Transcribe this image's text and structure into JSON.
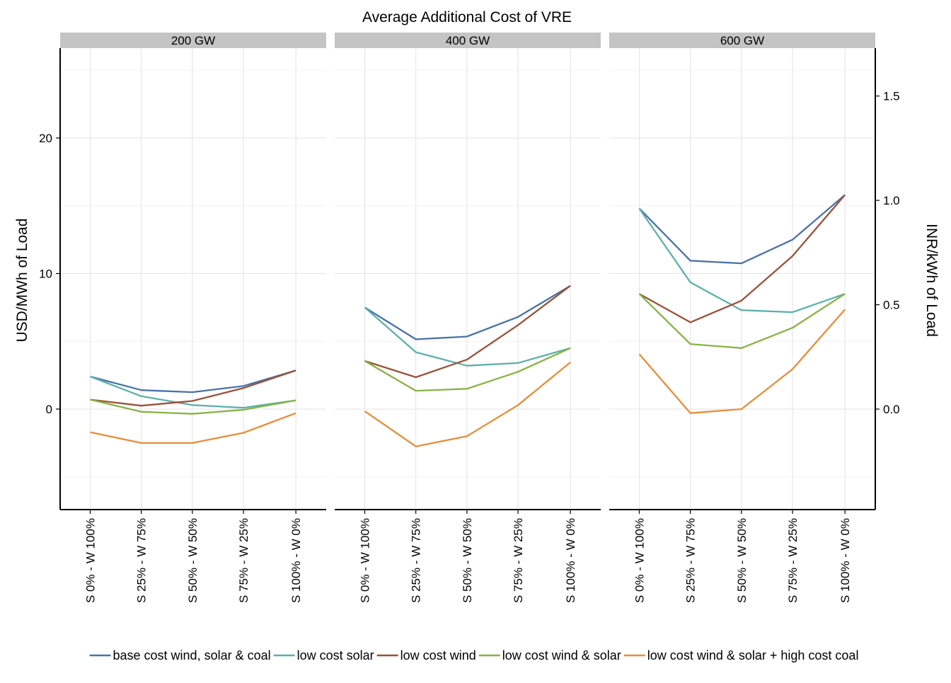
{
  "chart_data": {
    "type": "line",
    "title": "Average Additional Cost of VRE",
    "ylabel": "USD/MWh of Load",
    "y2label": "INR/kWh of Load",
    "ylim": [
      -7.5,
      26.5
    ],
    "y_ticks": [
      0,
      10,
      20
    ],
    "y2_ticks": [
      "0.0",
      "0.5",
      "1.0",
      "1.5"
    ],
    "y2_tick_values_usd": [
      0,
      7.7,
      15.4,
      23.1
    ],
    "categories": [
      "S 0% - W 100%",
      "S 25% - W 75%",
      "S 50% - W 50%",
      "S 75% - W 25%",
      "S 100% - W 0%"
    ],
    "legend_position": "bottom",
    "grid": true,
    "panels": [
      {
        "label": "200 GW",
        "series": [
          {
            "name": "base cost wind, solar & coal",
            "color": "#4a72a8",
            "values": [
              2.4,
              1.4,
              1.25,
              1.7,
              2.85
            ]
          },
          {
            "name": "low cost solar",
            "color": "#5cb0ad",
            "values": [
              2.4,
              0.95,
              0.3,
              0.1,
              0.65
            ]
          },
          {
            "name": "low cost wind",
            "color": "#9b5138",
            "values": [
              0.7,
              0.25,
              0.6,
              1.55,
              2.85
            ]
          },
          {
            "name": "low cost wind & solar",
            "color": "#86b443",
            "values": [
              0.7,
              -0.2,
              -0.35,
              -0.05,
              0.65
            ]
          },
          {
            "name": "low cost wind & solar + high cost coal",
            "color": "#ea8c36",
            "values": [
              -1.7,
              -2.5,
              -2.5,
              -1.75,
              -0.3
            ]
          }
        ]
      },
      {
        "label": "400 GW",
        "series": [
          {
            "name": "base cost wind, solar & coal",
            "color": "#4a72a8",
            "values": [
              7.5,
              5.15,
              5.35,
              6.8,
              9.1
            ]
          },
          {
            "name": "low cost solar",
            "color": "#5cb0ad",
            "values": [
              7.5,
              4.2,
              3.2,
              3.4,
              4.5
            ]
          },
          {
            "name": "low cost wind",
            "color": "#9b5138",
            "values": [
              3.55,
              2.35,
              3.65,
              6.2,
              9.1
            ]
          },
          {
            "name": "low cost wind & solar",
            "color": "#86b443",
            "values": [
              3.55,
              1.35,
              1.5,
              2.75,
              4.5
            ]
          },
          {
            "name": "low cost wind & solar + high cost coal",
            "color": "#ea8c36",
            "values": [
              -0.15,
              -2.75,
              -2.0,
              0.3,
              3.45
            ]
          }
        ]
      },
      {
        "label": "600 GW",
        "series": [
          {
            "name": "base cost wind, solar & coal",
            "color": "#4a72a8",
            "values": [
              14.8,
              10.95,
              10.75,
              12.5,
              15.8
            ]
          },
          {
            "name": "low cost solar",
            "color": "#5cb0ad",
            "values": [
              14.8,
              9.35,
              7.3,
              7.15,
              8.5
            ]
          },
          {
            "name": "low cost wind",
            "color": "#9b5138",
            "values": [
              8.5,
              6.4,
              8.0,
              11.3,
              15.8
            ]
          },
          {
            "name": "low cost wind & solar",
            "color": "#86b443",
            "values": [
              8.5,
              4.8,
              4.5,
              6.0,
              8.5
            ]
          },
          {
            "name": "low cost wind & solar + high cost coal",
            "color": "#ea8c36",
            "values": [
              4.05,
              -0.3,
              0.0,
              2.95,
              7.35
            ]
          }
        ]
      }
    ],
    "legend": [
      {
        "name": "base cost wind, solar & coal",
        "color": "#4a72a8"
      },
      {
        "name": "low cost solar",
        "color": "#5cb0ad"
      },
      {
        "name": "low cost wind",
        "color": "#9b5138"
      },
      {
        "name": "low cost wind & solar",
        "color": "#86b443"
      },
      {
        "name": "low cost wind & solar + high cost coal",
        "color": "#ea8c36"
      }
    ]
  }
}
